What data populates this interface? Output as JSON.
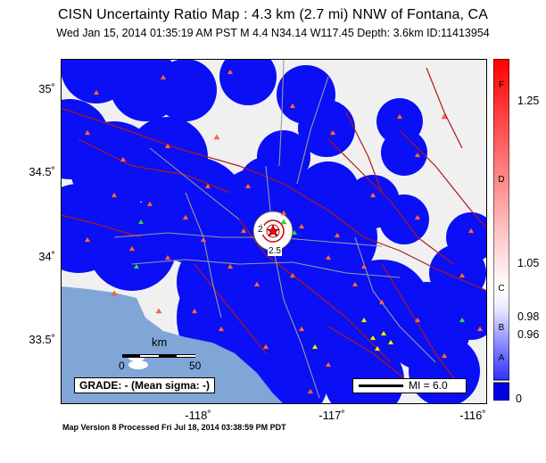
{
  "header": {
    "title": "CISN Uncertainty Ratio Map : 4.3 km (2.7 mi) NNW of Fontana, CA",
    "subtitle": "Wed Jan 15, 2014 01:35:19 AM PST   M 4.4   N34.14 W117.45   Depth: 3.6km   ID:11413954"
  },
  "map": {
    "lat_ticks": [
      "35˚",
      "34.5˚",
      "34˚",
      "33.5˚"
    ],
    "lon_ticks": [
      "-118˚",
      "-117˚",
      "-116˚"
    ],
    "grade_text": "GRADE: - (Mean sigma: -)",
    "contour_label_1": "2",
    "contour_label_2": "2.5",
    "scale": {
      "unit": "km",
      "start": "0",
      "end": "50"
    },
    "mi_legend": "MI = 6.0",
    "colors": {
      "water": "#7fa6d6",
      "low": "#0000ff",
      "high": "#f2f2f2",
      "station": "#ff6a4a",
      "strong_motion": "#ffff00"
    }
  },
  "colorbar": {
    "values": [
      "1.25",
      "1.05",
      "0.98",
      "0.96",
      "0"
    ],
    "grades": [
      "F",
      "D",
      "C",
      "B",
      "A"
    ]
  },
  "footer": {
    "text": "Map Version 8 Processed Fri Jul 18, 2014 03:38:59 PM PDT"
  }
}
